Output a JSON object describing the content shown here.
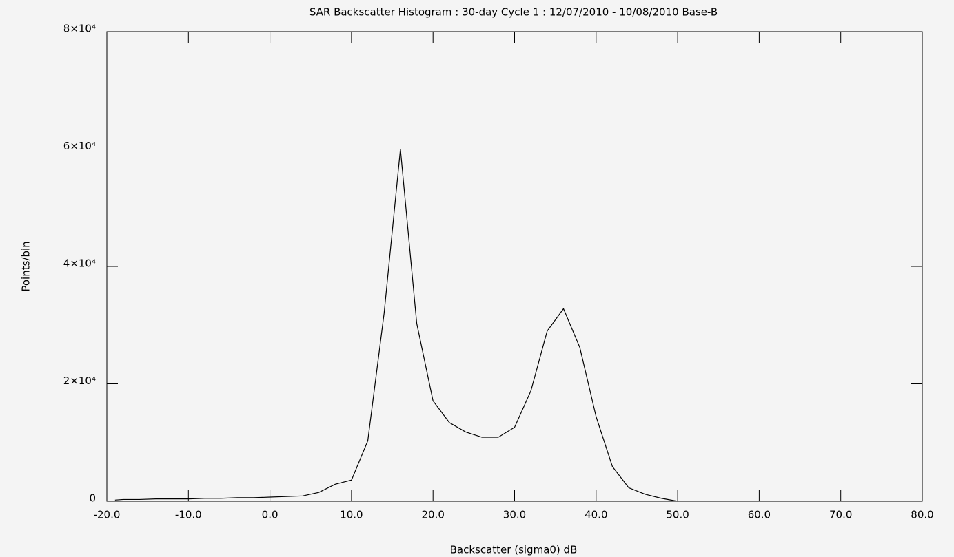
{
  "chart_data": {
    "type": "line",
    "title": "SAR Backscatter Histogram : 30-day Cycle 1 : 12/07/2010 - 10/08/2010 Base-B",
    "x_label": "Backscatter (sigma0) dB",
    "y_label": "Points/bin",
    "x": [
      -19,
      -18,
      -16,
      -14,
      -12,
      -10,
      -8,
      -6,
      -4,
      -2,
      0,
      2,
      4,
      6,
      8,
      10,
      12,
      14,
      16,
      18,
      20,
      22,
      24,
      26,
      28,
      30,
      32,
      34,
      36,
      38,
      40,
      42,
      44,
      46,
      48,
      50
    ],
    "series": [
      {
        "name": "Points/bin",
        "color": "#000000",
        "values": [
          200,
          300,
          300,
          400,
          400,
          400,
          500,
          500,
          600,
          600,
          700,
          800,
          900,
          1500,
          2900,
          3600,
          10300,
          32000,
          60000,
          30300,
          17100,
          13400,
          11800,
          10900,
          10900,
          12600,
          18800,
          29000,
          32800,
          26200,
          14400,
          5900,
          2300,
          1200,
          500,
          0
        ]
      }
    ],
    "xlim": [
      -20,
      80
    ],
    "xticks": [
      {
        "value": -20,
        "label": "-20.0"
      },
      {
        "value": -10,
        "label": "-10.0"
      },
      {
        "value": 0,
        "label": "0.0"
      },
      {
        "value": 10,
        "label": "10.0"
      },
      {
        "value": 20,
        "label": "20.0"
      },
      {
        "value": 30,
        "label": "30.0"
      },
      {
        "value": 40,
        "label": "40.0"
      },
      {
        "value": 50,
        "label": "50.0"
      },
      {
        "value": 60,
        "label": "60.0"
      },
      {
        "value": 70,
        "label": "70.0"
      },
      {
        "value": 80,
        "label": "80.0"
      }
    ],
    "ylim": [
      0,
      80000
    ],
    "yticks": [
      0,
      {
        "value": 20000,
        "label": "2×10⁴"
      },
      {
        "value": 40000,
        "label": "4×10⁴"
      },
      {
        "value": 60000,
        "label": "6×10⁴"
      },
      {
        "value": 80000,
        "label": "8×10⁴"
      }
    ]
  }
}
